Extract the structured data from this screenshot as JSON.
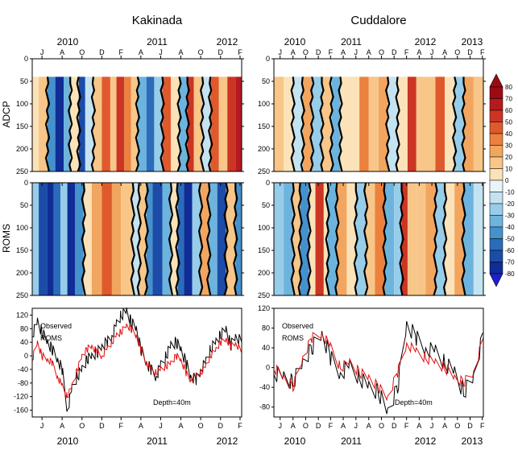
{
  "chart_data": [
    {
      "type": "heatmap",
      "panel": "Kakinada ADCP",
      "title": "Kakinada",
      "ylabel": "ADCP",
      "ylim": [
        250,
        0
      ],
      "yticks": [
        0,
        50,
        100,
        150,
        200,
        250
      ],
      "data_depth_range": [
        40,
        250
      ],
      "time_range": [
        "2010-06-15",
        "2012-03-20"
      ],
      "band_edges": [
        "2010-06-15",
        "2010-07-05",
        "2010-08-01",
        "2010-08-25",
        "2010-09-20",
        "2010-10-10",
        "2010-11-05",
        "2010-11-25",
        "2010-12-20",
        "2011-01-15",
        "2011-02-10",
        "2011-03-01",
        "2011-03-25",
        "2011-04-15",
        "2011-05-05",
        "2011-06-01",
        "2011-06-25",
        "2011-07-20",
        "2011-08-15",
        "2011-09-10",
        "2011-10-05",
        "2011-10-25",
        "2011-11-20",
        "2011-12-15",
        "2012-01-10",
        "2012-02-05",
        "2012-03-01",
        "2012-03-20"
      ],
      "band_values": [
        10,
        20,
        -40,
        -70,
        -30,
        5,
        -60,
        -10,
        15,
        45,
        20,
        60,
        40,
        15,
        -30,
        -50,
        -20,
        50,
        10,
        -30,
        60,
        20,
        -10,
        45,
        15,
        60,
        70
      ]
    },
    {
      "type": "heatmap",
      "panel": "Cuddalore ADCP",
      "title": "Cuddalore",
      "ylim": [
        250,
        0
      ],
      "yticks": [
        0,
        50,
        100,
        150,
        200,
        250
      ],
      "data_depth_range": [
        40,
        250
      ],
      "time_range": [
        "2010-06-15",
        "2013-03-20"
      ],
      "band_edges": [
        "2010-06-15",
        "2010-08-01",
        "2010-09-15",
        "2010-11-01",
        "2010-12-15",
        "2011-02-01",
        "2011-03-20",
        "2011-05-01",
        "2011-06-15",
        "2011-08-01",
        "2011-09-15",
        "2011-11-01",
        "2011-12-15",
        "2012-02-01",
        "2012-03-20",
        "2012-05-01",
        "2012-06-15",
        "2012-08-01",
        "2012-09-15",
        "2012-11-01",
        "2012-12-15",
        "2013-02-01",
        "2013-03-20"
      ],
      "band_values": [
        20,
        5,
        -10,
        25,
        -20,
        15,
        -30,
        10,
        5,
        40,
        15,
        25,
        -15,
        5,
        55,
        20,
        15,
        50,
        10,
        -20,
        30,
        15
      ]
    },
    {
      "type": "heatmap",
      "panel": "Kakinada ROMS",
      "ylabel": "ROMS",
      "ylim": [
        250,
        0
      ],
      "yticks": [
        0,
        50,
        100,
        150,
        200,
        250
      ],
      "data_depth_range": [
        0,
        250
      ],
      "time_range": [
        "2010-06-15",
        "2012-03-20"
      ],
      "band_edges": [
        "2010-06-15",
        "2010-07-05",
        "2010-08-01",
        "2010-08-20",
        "2010-09-10",
        "2010-10-01",
        "2010-10-25",
        "2010-11-20",
        "2010-12-15",
        "2011-01-15",
        "2011-02-15",
        "2011-03-15",
        "2011-04-20",
        "2011-05-10",
        "2011-06-01",
        "2011-06-20",
        "2011-07-20",
        "2011-08-15",
        "2011-09-05",
        "2011-09-25",
        "2011-10-20",
        "2011-11-15",
        "2011-12-10",
        "2012-01-05",
        "2012-02-01",
        "2012-03-01",
        "2012-03-20"
      ],
      "band_values": [
        -20,
        -60,
        -80,
        -50,
        -20,
        -70,
        -40,
        10,
        30,
        45,
        30,
        20,
        -10,
        20,
        -40,
        -60,
        -30,
        10,
        -50,
        -70,
        -20,
        30,
        -30,
        -60,
        20,
        -40
      ]
    },
    {
      "type": "heatmap",
      "panel": "Cuddalore ROMS",
      "ylim": [
        250,
        0
      ],
      "yticks": [
        0,
        50,
        100,
        150,
        200,
        250
      ],
      "data_depth_range": [
        0,
        250
      ],
      "time_range": [
        "2010-06-15",
        "2013-03-20"
      ],
      "band_edges": [
        "2010-06-15",
        "2010-08-01",
        "2010-09-15",
        "2010-10-20",
        "2010-12-01",
        "2011-01-01",
        "2011-02-10",
        "2011-03-01",
        "2011-04-15",
        "2011-06-01",
        "2011-07-15",
        "2011-09-01",
        "2011-10-15",
        "2011-12-01",
        "2012-01-15",
        "2012-02-20",
        "2012-03-20",
        "2012-05-01",
        "2012-06-15",
        "2012-08-01",
        "2012-09-15",
        "2012-11-01",
        "2012-12-15",
        "2013-02-01",
        "2013-03-20"
      ],
      "band_values": [
        -20,
        -30,
        20,
        -40,
        10,
        60,
        10,
        -30,
        30,
        10,
        -20,
        15,
        40,
        -30,
        -20,
        60,
        20,
        15,
        30,
        -20,
        10,
        25,
        -30,
        -10
      ]
    },
    {
      "type": "line",
      "panel": "Kakinada timeseries",
      "annotation": "Depth=40m",
      "ylim": [
        -180,
        140
      ],
      "yticks": [
        120,
        80,
        40,
        0,
        -40,
        -80,
        -120,
        -160
      ],
      "xlim": [
        "2010-06-15",
        "2012-03-20"
      ],
      "series": [
        {
          "name": "Observed",
          "color": "#000000",
          "x": [
            "2010-06-15",
            "2010-07-01",
            "2010-07-15",
            "2010-08-01",
            "2010-08-15",
            "2010-09-01",
            "2010-09-15",
            "2010-10-01",
            "2010-10-15",
            "2010-11-01",
            "2010-11-15",
            "2010-12-01",
            "2010-12-15",
            "2011-01-01",
            "2011-01-15",
            "2011-02-01",
            "2011-02-15",
            "2011-03-01",
            "2011-03-15",
            "2011-04-01",
            "2011-04-15",
            "2011-05-01",
            "2011-05-15",
            "2011-06-01",
            "2011-06-15",
            "2011-07-01",
            "2011-07-15",
            "2011-08-01",
            "2011-08-15",
            "2011-09-01",
            "2011-09-15",
            "2011-10-01",
            "2011-10-15",
            "2011-11-01",
            "2011-11-15",
            "2011-12-01",
            "2011-12-15",
            "2012-01-01",
            "2012-01-15",
            "2012-02-01",
            "2012-02-15",
            "2012-03-01",
            "2012-03-20"
          ],
          "y": [
            60,
            100,
            70,
            40,
            20,
            -10,
            -40,
            -160,
            -100,
            -60,
            -40,
            -10,
            0,
            10,
            30,
            40,
            60,
            90,
            120,
            130,
            100,
            80,
            20,
            -20,
            -40,
            -60,
            -30,
            0,
            30,
            40,
            20,
            -20,
            -60,
            -70,
            -40,
            -20,
            20,
            40,
            60,
            80,
            30,
            60,
            40
          ]
        },
        {
          "name": "ROMS",
          "color": "#e01010",
          "x": [
            "2010-06-15",
            "2010-07-01",
            "2010-07-15",
            "2010-08-01",
            "2010-08-15",
            "2010-09-01",
            "2010-09-15",
            "2010-10-01",
            "2010-10-15",
            "2010-11-01",
            "2010-11-15",
            "2010-12-01",
            "2010-12-15",
            "2011-01-01",
            "2011-01-15",
            "2011-02-01",
            "2011-02-15",
            "2011-03-01",
            "2011-03-15",
            "2011-04-01",
            "2011-04-15",
            "2011-05-01",
            "2011-05-15",
            "2011-06-01",
            "2011-06-15",
            "2011-07-01",
            "2011-07-15",
            "2011-08-01",
            "2011-08-15",
            "2011-09-01",
            "2011-09-15",
            "2011-10-01",
            "2011-10-15",
            "2011-11-01",
            "2011-11-15",
            "2011-12-01",
            "2011-12-15",
            "2012-01-01",
            "2012-01-15",
            "2012-02-01",
            "2012-02-15",
            "2012-03-01",
            "2012-03-20"
          ],
          "y": [
            -10,
            40,
            0,
            -10,
            -20,
            -60,
            -90,
            -120,
            -90,
            -40,
            0,
            20,
            30,
            10,
            0,
            20,
            40,
            60,
            70,
            90,
            80,
            60,
            20,
            -20,
            -40,
            -50,
            -40,
            -30,
            -20,
            0,
            -10,
            -50,
            -70,
            -60,
            -50,
            -30,
            0,
            20,
            40,
            50,
            30,
            40,
            10
          ]
        }
      ],
      "month_labels": [
        "J",
        "A",
        "O",
        "D",
        "F",
        "A",
        "J",
        "A",
        "O",
        "D",
        "F"
      ],
      "year_labels": [
        "2010",
        "2011",
        "2012"
      ]
    },
    {
      "type": "line",
      "panel": "Cuddalore timeseries",
      "annotation": "Depth=40m",
      "ylim": [
        -100,
        120
      ],
      "yticks": [
        120,
        80,
        40,
        0,
        -40,
        -80
      ],
      "xlim": [
        "2010-06-15",
        "2013-03-20"
      ],
      "series": [
        {
          "name": "Observed",
          "color": "#000000",
          "x": [
            "2010-06-15",
            "2010-08-01",
            "2010-09-15",
            "2010-11-01",
            "2010-12-15",
            "2011-02-01",
            "2011-03-15",
            "2011-05-01",
            "2011-06-15",
            "2011-08-01",
            "2011-09-15",
            "2011-11-01",
            "2011-12-15",
            "2012-02-01",
            "2012-03-15",
            "2012-05-01",
            "2012-06-15",
            "2012-08-01",
            "2012-09-15",
            "2012-11-01",
            "2012-12-15",
            "2013-02-01",
            "2013-03-20"
          ],
          "y": [
            -10,
            -20,
            -30,
            10,
            40,
            70,
            20,
            -10,
            0,
            -20,
            -40,
            -50,
            -90,
            -40,
            90,
            60,
            40,
            30,
            10,
            -10,
            -50,
            -20,
            70
          ]
        },
        {
          "name": "ROMS",
          "color": "#e01010",
          "x": [
            "2010-06-15",
            "2010-08-01",
            "2010-09-15",
            "2010-11-01",
            "2010-12-15",
            "2011-02-01",
            "2011-03-15",
            "2011-05-01",
            "2011-06-15",
            "2011-08-01",
            "2011-09-15",
            "2011-11-01",
            "2011-12-15",
            "2012-02-01",
            "2012-03-15",
            "2012-05-01",
            "2012-06-15",
            "2012-08-01",
            "2012-09-15",
            "2012-11-01",
            "2012-12-15",
            "2013-02-01",
            "2013-03-20"
          ],
          "y": [
            0,
            -20,
            -40,
            20,
            60,
            70,
            40,
            0,
            10,
            -10,
            -20,
            -40,
            -60,
            -10,
            50,
            30,
            20,
            10,
            0,
            -20,
            -30,
            -10,
            60
          ]
        }
      ],
      "month_labels": [
        "J",
        "A",
        "O",
        "D",
        "F",
        "A",
        "J",
        "A",
        "O",
        "D",
        "F",
        "A",
        "J",
        "A",
        "O",
        "D",
        "F"
      ],
      "year_labels": [
        "2010",
        "2011",
        "2012",
        "2013"
      ]
    }
  ],
  "top_axis": {
    "kakinada": {
      "year_labels": [
        "2010",
        "2011",
        "2012"
      ],
      "month_labels": [
        "J",
        "A",
        "O",
        "D",
        "F",
        "A",
        "J",
        "A",
        "O",
        "D",
        "F"
      ]
    },
    "cuddalore": {
      "year_labels": [
        "2010",
        "2011",
        "2012",
        "2013"
      ],
      "month_labels": [
        "J",
        "A",
        "O",
        "D",
        "F",
        "A",
        "J",
        "A",
        "O",
        "D",
        "F",
        "A",
        "J",
        "A",
        "O",
        "D",
        "F"
      ]
    }
  },
  "colorbar": {
    "labels": [
      "80",
      "70",
      "60",
      "50",
      "40",
      "30",
      "20",
      "10",
      "0",
      "-10",
      "-20",
      "-30",
      "-40",
      "-50",
      "-60",
      "-70",
      "-80"
    ],
    "colors": [
      "#9e0a14",
      "#b51a1f",
      "#cc3424",
      "#de5a2c",
      "#eb813d",
      "#f2a55f",
      "#f7c688",
      "#fbe2b8",
      "#eaf4f8",
      "#c4e3f1",
      "#97cde8",
      "#6cb4dd",
      "#4591cc",
      "#2b6cba",
      "#1c4ca8",
      "#0f2d95"
    ],
    "max_color": "#9e0a14",
    "min_color": "#1f1fd0"
  }
}
